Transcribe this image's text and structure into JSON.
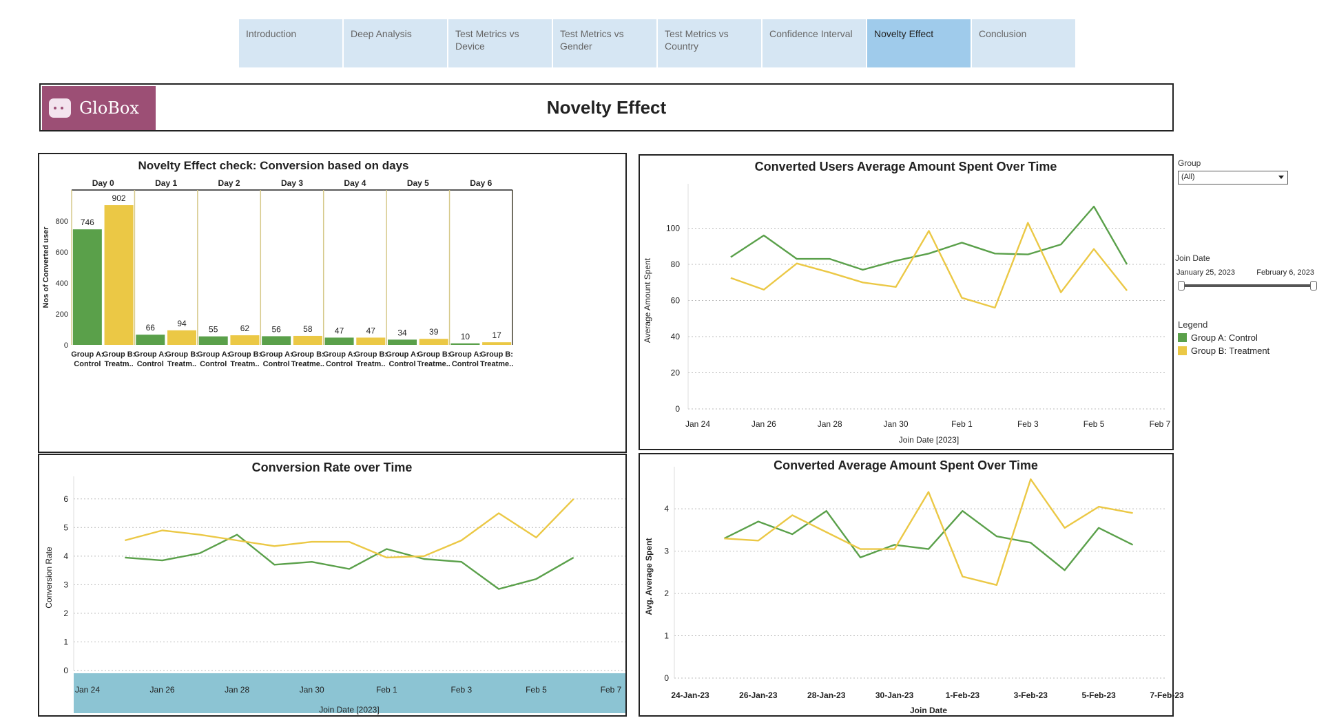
{
  "nav": {
    "tabs": [
      {
        "label": "Introduction",
        "active": false
      },
      {
        "label": "Deep Analysis",
        "active": false
      },
      {
        "label": "Test Metrics vs Device",
        "active": false
      },
      {
        "label": "Test Metrics vs Gender",
        "active": false
      },
      {
        "label": "Test Metrics vs Country",
        "active": false
      },
      {
        "label": "Confidence Interval",
        "active": false
      },
      {
        "label": "Novelty Effect",
        "active": true
      },
      {
        "label": "Conclusion",
        "active": false
      }
    ]
  },
  "header": {
    "logo_text": "GloBox",
    "title": "Novelty Effect"
  },
  "colors": {
    "control": "#5aa04a",
    "treatment": "#ebc845",
    "divider": "#d6c98a",
    "axis_band": "#8cc4d3"
  },
  "filters": {
    "group_label": "Group",
    "group_value": "(All)",
    "join_date_label": "Join Date",
    "date_start": "January 25, 2023",
    "date_end": "February 6, 2023"
  },
  "legend": {
    "title": "Legend",
    "items": [
      {
        "label": "Group A: Control",
        "color": "#5aa04a"
      },
      {
        "label": "Group B: Treatment",
        "color": "#ebc845"
      }
    ]
  },
  "chart_data": [
    {
      "id": "novelty",
      "type": "bar",
      "title": "Novelty Effect check: Conversion based on days",
      "ylabel": "Nos of Converted user",
      "ylim": [
        0,
        1000
      ],
      "yticks": [
        0,
        200,
        400,
        600,
        800
      ],
      "panels": [
        "Day 0",
        "Day 1",
        "Day 2",
        "Day 3",
        "Day 4",
        "Day 5",
        "Day 6"
      ],
      "group_labels": [
        [
          "Group A:",
          "Control"
        ],
        [
          "Group B:",
          "Treatm.."
        ]
      ],
      "group_labels_alt": [
        [
          "Group A:",
          "Control"
        ],
        [
          "Group B:",
          "Treatme.."
        ]
      ],
      "series": [
        {
          "name": "Group A: Control",
          "values": [
            746,
            66,
            55,
            56,
            47,
            34,
            10
          ]
        },
        {
          "name": "Group B: Treatment",
          "values": [
            902,
            94,
            62,
            58,
            47,
            39,
            17
          ]
        }
      ]
    },
    {
      "id": "avg_spent",
      "type": "line",
      "title": "Converted Users Average Amount Spent Over Time",
      "xlabel": "Join Date [2023]",
      "ylabel": "Average Amount Spent",
      "ylim": [
        0,
        120
      ],
      "yticks": [
        0,
        20,
        40,
        60,
        80,
        100
      ],
      "xticks": [
        "Jan 24",
        "Jan 26",
        "Jan 28",
        "Jan 30",
        "Feb 1",
        "Feb 3",
        "Feb 5",
        "Feb 7"
      ],
      "x": [
        "Jan 25",
        "Jan 26",
        "Jan 27",
        "Jan 28",
        "Jan 29",
        "Jan 30",
        "Jan 31",
        "Feb 1",
        "Feb 2",
        "Feb 3",
        "Feb 4",
        "Feb 5",
        "Feb 6"
      ],
      "series": [
        {
          "name": "Group A: Control",
          "values": [
            84,
            96,
            83,
            83,
            77,
            82,
            86,
            92,
            86,
            85.5,
            91,
            112,
            80
          ]
        },
        {
          "name": "Group B: Treatment",
          "values": [
            72.5,
            66,
            80.5,
            75.5,
            70,
            67.5,
            98.5,
            61.5,
            56,
            103,
            64.5,
            88.5,
            65.5
          ]
        }
      ]
    },
    {
      "id": "conv_rate",
      "type": "line",
      "title": "Conversion Rate over Time",
      "xlabel": "Join Date [2023]",
      "ylabel": "Conversion Rate",
      "ylim": [
        0,
        6.5
      ],
      "yticks": [
        0,
        1,
        2,
        3,
        4,
        5,
        6
      ],
      "xticks": [
        "Jan 24",
        "Jan 26",
        "Jan 28",
        "Jan 30",
        "Feb 1",
        "Feb 3",
        "Feb 5",
        "Feb 7"
      ],
      "x": [
        "Jan 25",
        "Jan 26",
        "Jan 27",
        "Jan 28",
        "Jan 29",
        "Jan 30",
        "Jan 31",
        "Feb 1",
        "Feb 2",
        "Feb 3",
        "Feb 4",
        "Feb 5",
        "Feb 6"
      ],
      "series": [
        {
          "name": "Group A: Control",
          "values": [
            3.95,
            3.85,
            4.1,
            4.75,
            3.7,
            3.8,
            3.55,
            4.25,
            3.9,
            3.8,
            2.85,
            3.2,
            3.95
          ]
        },
        {
          "name": "Group B: Treatment",
          "values": [
            4.55,
            4.9,
            4.75,
            4.55,
            4.35,
            4.5,
            4.5,
            3.95,
            4.0,
            4.55,
            5.5,
            4.65,
            6.0
          ]
        }
      ]
    },
    {
      "id": "avg_avg_spent",
      "type": "line",
      "title": "Converted Average Amount Spent Over Time",
      "xlabel": "Join Date",
      "ylabel": "Avg. Average Spent",
      "ylim": [
        0,
        4.8
      ],
      "yticks": [
        0,
        1,
        2,
        3,
        4
      ],
      "xticks": [
        "24-Jan-23",
        "26-Jan-23",
        "28-Jan-23",
        "30-Jan-23",
        "1-Feb-23",
        "3-Feb-23",
        "5-Feb-23",
        "7-Feb-23"
      ],
      "x": [
        "25-Jan",
        "26-Jan",
        "27-Jan",
        "28-Jan",
        "29-Jan",
        "30-Jan",
        "31-Jan",
        "1-Feb",
        "2-Feb",
        "3-Feb",
        "4-Feb",
        "5-Feb",
        "6-Feb"
      ],
      "series": [
        {
          "name": "Group A: Control",
          "values": [
            3.3,
            3.7,
            3.4,
            3.95,
            2.85,
            3.15,
            3.05,
            3.95,
            3.35,
            3.2,
            2.55,
            3.55,
            3.15
          ]
        },
        {
          "name": "Group B: Treatment",
          "values": [
            3.3,
            3.25,
            3.85,
            3.45,
            3.05,
            3.05,
            4.4,
            2.4,
            2.2,
            4.7,
            3.55,
            4.05,
            3.9
          ]
        }
      ]
    }
  ]
}
